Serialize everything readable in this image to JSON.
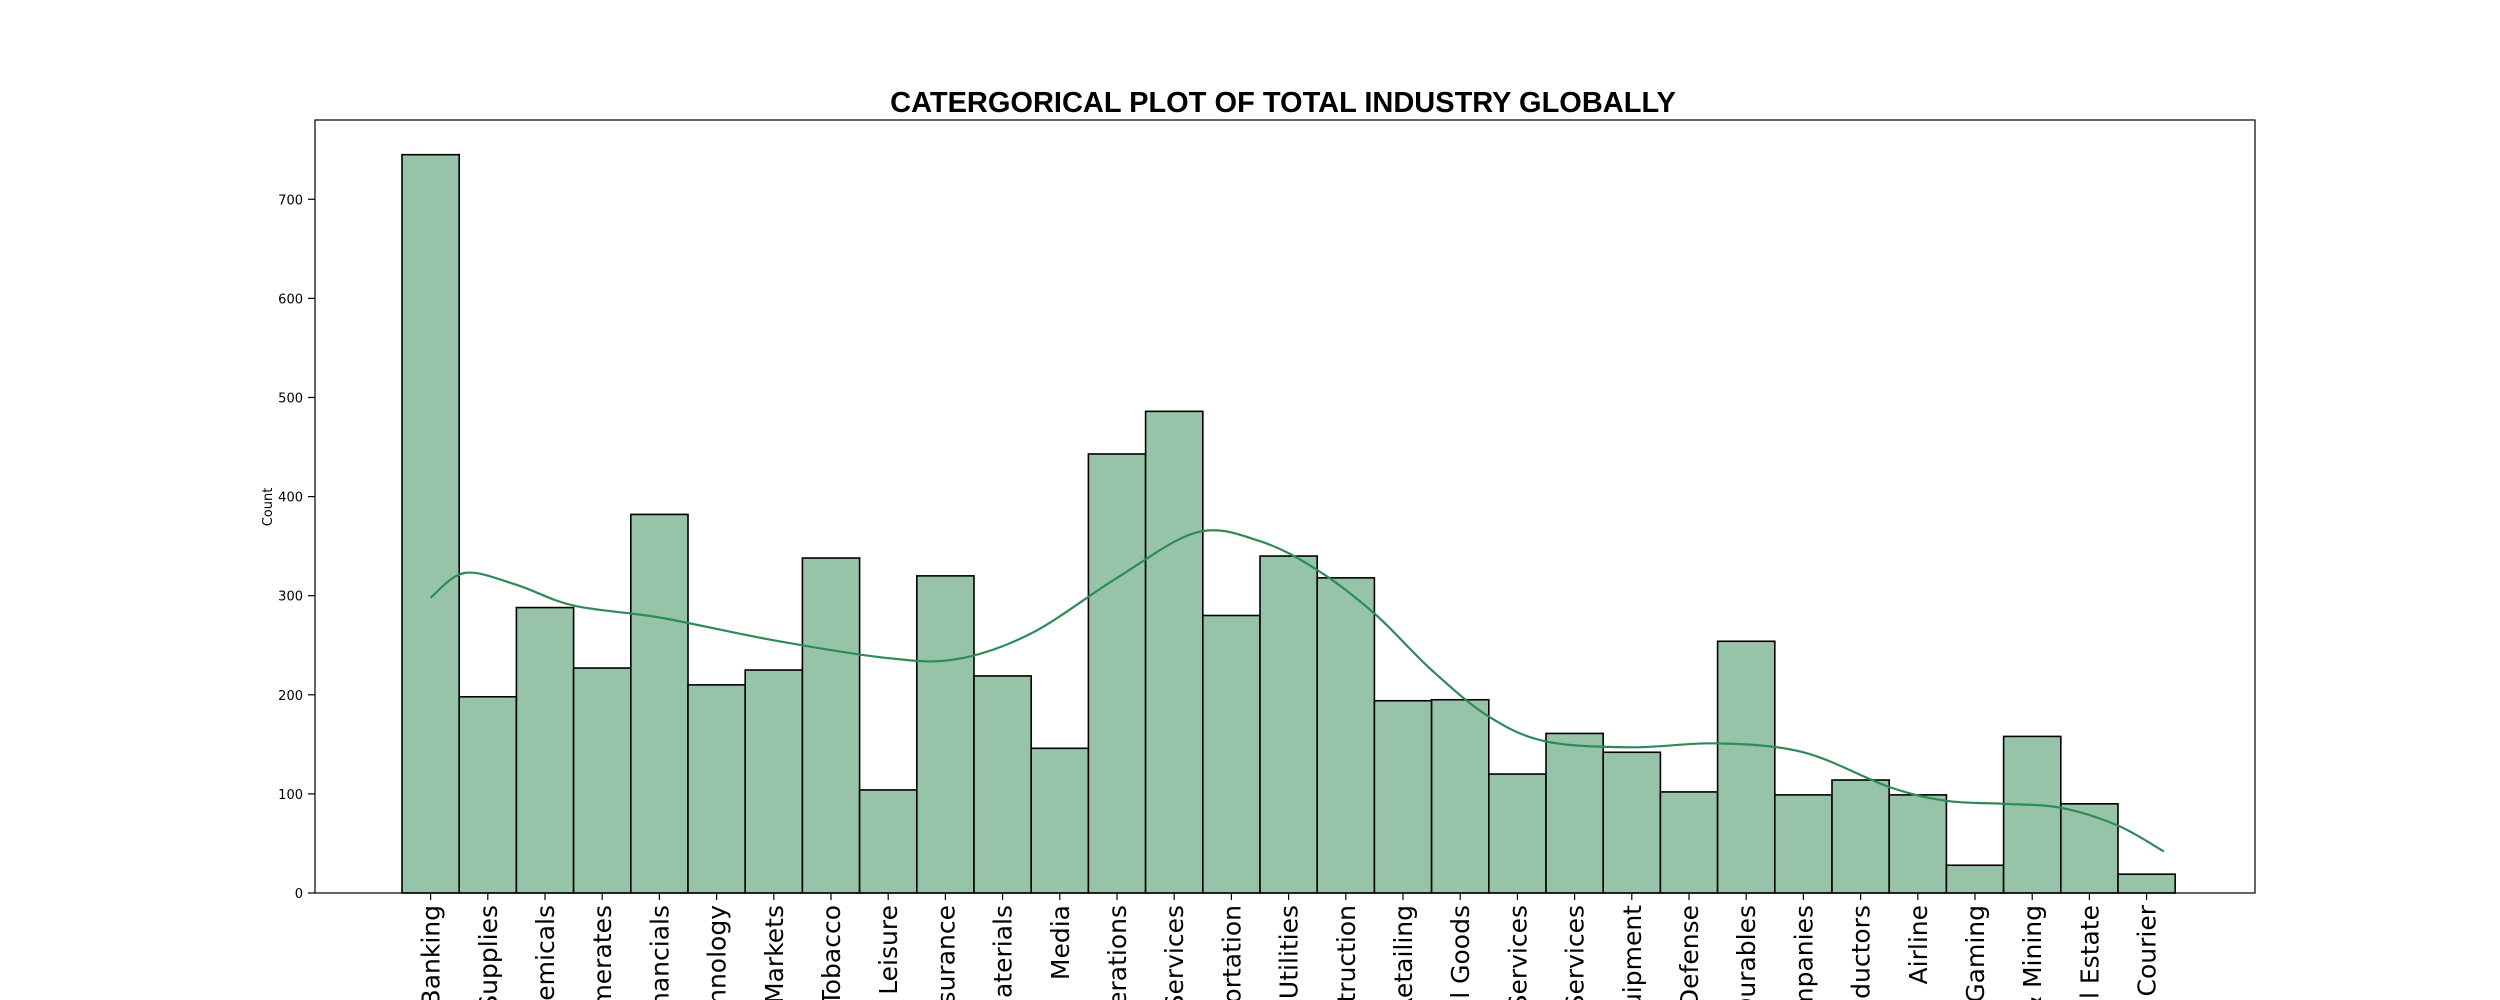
{
  "chart_data": {
    "type": "bar",
    "title": "CATERGORICAL PLOT OF TOTAL INDUSTRY GLOBALLY",
    "xlabel": "",
    "ylabel": "Count",
    "ylim": [
      0,
      780
    ],
    "yticks": [
      0,
      100,
      200,
      300,
      400,
      500,
      600,
      700
    ],
    "grid": false,
    "bar_color": "#97c4a8",
    "line_color": "#2e8b57",
    "categories": [
      "Banking",
      "Supplies",
      "hemicals",
      "omerates",
      "inancials",
      "chnology",
      "l Markets",
      "Tobacco",
      "& Leisure",
      "nsurance",
      "Materials",
      "Media",
      "perations",
      "Services",
      "portation",
      "Utilities",
      "struction",
      "Retailing",
      "al Goods",
      "Services",
      "Services",
      "quipment",
      "Defense",
      "Durables",
      "ompanies",
      "nductors",
      "Airline",
      "Gaming",
      "& Mining",
      "al Estate",
      "r Courier"
    ],
    "values": [
      745,
      198,
      288,
      227,
      382,
      210,
      225,
      338,
      104,
      320,
      219,
      146,
      443,
      486,
      280,
      340,
      318,
      194,
      195,
      120,
      161,
      142,
      102,
      254,
      99,
      114,
      99,
      28,
      158,
      90,
      19
    ],
    "trend_line": {
      "x_index": [
        0,
        0.6,
        1.5,
        2.5,
        4,
        6,
        8,
        9.2,
        10.5,
        12,
        13.4,
        14.5,
        15.5,
        16.5,
        17.5,
        18.5,
        19.5,
        21,
        22.5,
        24,
        25.5,
        26.5,
        27.5,
        28.5,
        29.5,
        30.3
      ],
      "y": [
        298,
        323,
        311,
        290,
        278,
        255,
        237,
        236,
        262,
        318,
        364,
        355,
        326,
        282,
        225,
        178,
        153,
        147,
        151,
        142,
        107,
        93,
        90,
        86,
        68,
        42
      ]
    }
  }
}
